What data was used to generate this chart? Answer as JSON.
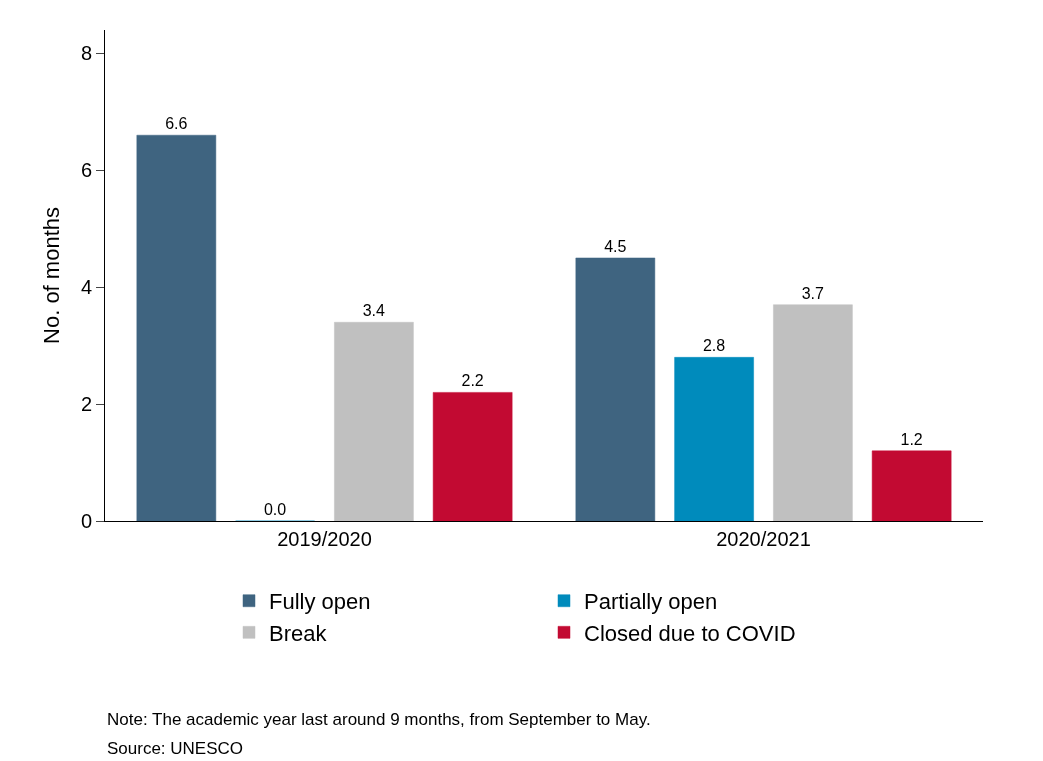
{
  "chart_data": {
    "type": "bar",
    "ylabel": "No. of months",
    "categories": [
      "2019/2020",
      "2020/2021"
    ],
    "series": [
      {
        "name": "Fully open",
        "color": "#3f6480",
        "values": [
          6.6,
          4.5
        ]
      },
      {
        "name": "Partially open",
        "color": "#008bbc",
        "values": [
          0.0,
          2.8
        ],
        "value_labels": [
          "0.0",
          "2.8"
        ]
      },
      {
        "name": "Break",
        "color": "#c0c0c0",
        "values": [
          3.4,
          3.7
        ]
      },
      {
        "name": "Closed due to COVID",
        "color": "#c20a32",
        "values": [
          2.2,
          1.2
        ]
      }
    ],
    "ylim": [
      0,
      8.4
    ],
    "yticks": [
      0,
      2,
      4,
      6,
      8
    ],
    "data_labels": true,
    "legend": "bottom",
    "annotations": [
      "Note: The academic year last around 9 months, from September to May.",
      "Source: UNESCO"
    ]
  }
}
